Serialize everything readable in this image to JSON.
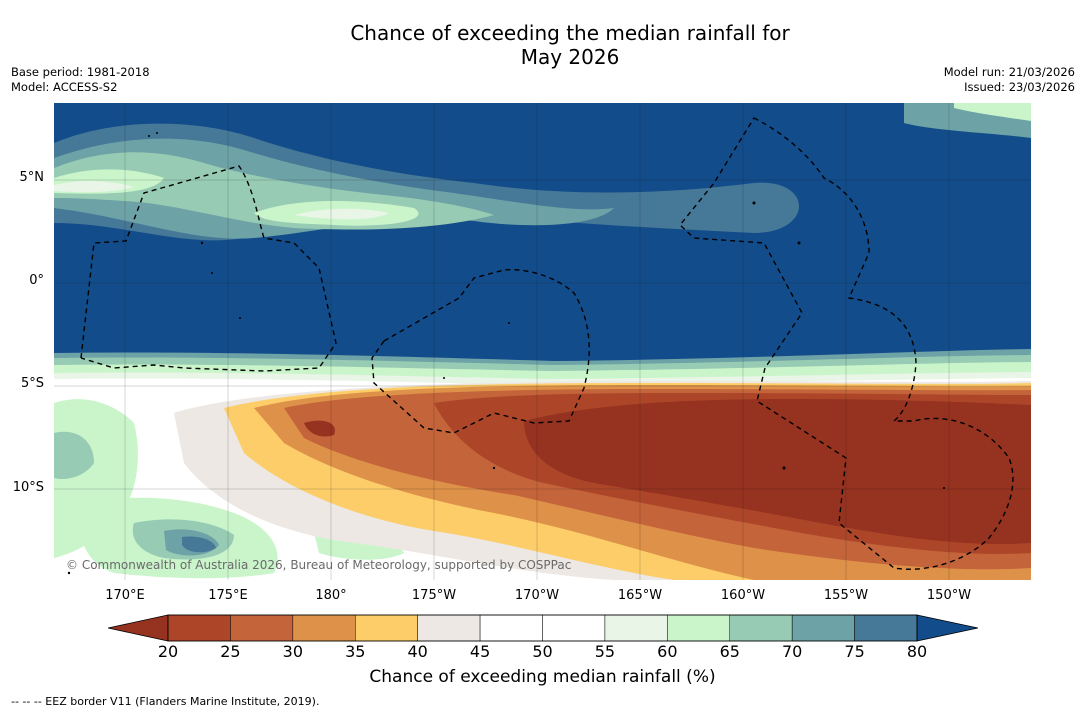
{
  "title_line1": "Chance of exceeding the median rainfall for",
  "title_line2": "May 2026",
  "meta": {
    "base_period": "Base period: 1981-2018",
    "model": "Model: ACCESS-S2",
    "model_run": "Model run: 21/03/2026",
    "issued": "Issued: 23/03/2026"
  },
  "lat_labels": [
    "5°N",
    "0°",
    "5°S",
    "10°S"
  ],
  "lon_labels": [
    "170°E",
    "175°E",
    "180°",
    "175°W",
    "170°W",
    "165°W",
    "160°W",
    "155°W",
    "150°W"
  ],
  "colorbar": {
    "ticks": [
      "20",
      "25",
      "30",
      "35",
      "40",
      "45",
      "50",
      "55",
      "60",
      "65",
      "70",
      "75",
      "80"
    ],
    "colors": [
      "#963220",
      "#ad4629",
      "#c4643a",
      "#de9149",
      "#fdcd6a",
      "#ede8e4",
      "#ffffff",
      "#ffffff",
      "#e8f5e7",
      "#caf5cb",
      "#98cbb3",
      "#6da2a6",
      "#467897",
      "#134c8a"
    ],
    "label": "Chance of exceeding median rainfall (%)"
  },
  "copyright": "© Commonwealth of Australia 2026, Bureau of Meteorology, supported by COSPPac",
  "footnote": "--  --  -- EEZ border V11 (Flanders Marine Institute, 2019)."
}
